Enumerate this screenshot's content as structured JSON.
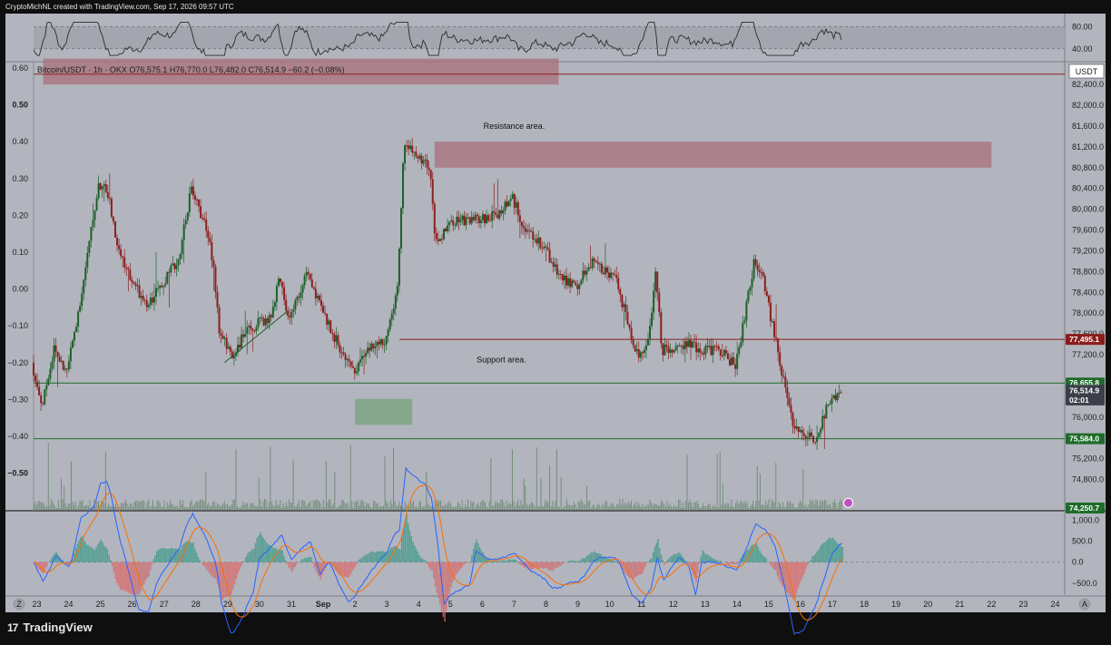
{
  "header": {
    "attribution": "CryptoMichNL created with TradingView.com, Sep 17, 2026 09:57 UTC"
  },
  "footer": {
    "brand": "TradingView",
    "logo_glyph": "17"
  },
  "symbol_line": "Bitcoin/USDT · 1h · OKX  O76,575.1  H76,770.0  L76,482.0  C76,514.9  −60.2 (−0.08%)",
  "currency_button": "USDT",
  "annotations": {
    "resistance": "Resistance area.",
    "support": "Support area."
  },
  "price_tags": [
    {
      "label": "77,495.1",
      "value": 77495.1,
      "color": "#8b1c1c"
    },
    {
      "label": "76,655.8",
      "value": 76655.8,
      "color": "#1e6b2a"
    },
    {
      "label": "76,514.9",
      "value": 76514.9,
      "color": "#3a3f4a"
    },
    {
      "label": "02:01",
      "value": 76330,
      "color": "#3a3f4a"
    },
    {
      "label": "75,584.0",
      "value": 75584.0,
      "color": "#1e6b2a"
    },
    {
      "label": "74,250.7",
      "value": 74250.7,
      "color": "#1e6b2a"
    }
  ],
  "axis_labels": {
    "right_price": [
      "82,400.0",
      "82,000.0",
      "81,600.0",
      "81,200.0",
      "80,800.0",
      "80,400.0",
      "80,000.0",
      "79,600.0",
      "79,200.0",
      "78,800.0",
      "78,400.0",
      "78,000.0",
      "77,600.0",
      "77,200.0",
      "76,000.0",
      "75,200.0",
      "74,800.0"
    ],
    "left": [
      "0.60",
      "0.50",
      "0.40",
      "0.30",
      "0.20",
      "0.10",
      "0.00",
      "−0.10",
      "−0.20",
      "−0.30",
      "−0.40",
      "−0.50"
    ],
    "rsi_right": [
      "80.00",
      "40.00"
    ],
    "macd_right": [
      "1,000.0",
      "500.0",
      "0.0",
      "−500.0"
    ],
    "x_dates": [
      "23",
      "24",
      "25",
      "26",
      "27",
      "28",
      "29",
      "30",
      "31",
      "Sep",
      "2",
      "3",
      "4",
      "5",
      "6",
      "7",
      "8",
      "9",
      "10",
      "11",
      "12",
      "13",
      "14",
      "15",
      "16",
      "17",
      "18",
      "19",
      "20",
      "21",
      "22",
      "23",
      "24"
    ],
    "x_left_btn": "Z",
    "x_right_btn": "A"
  },
  "colors": {
    "up": "#1f5f2a",
    "down": "#8e1f1f",
    "panel": "#b2b5be",
    "resistance_zone": "#a8707a",
    "support_zone": "#7ea583"
  },
  "chart_data": {
    "type": "candlestick",
    "title": "",
    "interval": "1h",
    "x_range": [
      "Aug 23",
      "Sep 24"
    ],
    "y_range": [
      74250,
      82700
    ],
    "y_unit": "USDT",
    "ohlc_last": {
      "open": 76575.1,
      "high": 76770.0,
      "low": 76482.0,
      "close": 76514.9,
      "change": -60.2,
      "change_pct": -0.08
    },
    "price_path": [
      [
        "Aug 22.9",
        77050
      ],
      [
        "Aug 23.2",
        76200
      ],
      [
        "Aug 23.6",
        77300
      ],
      [
        "Aug 24.0",
        76850
      ],
      [
        "Aug 24.5",
        78500
      ],
      [
        "Aug 25.0",
        80500
      ],
      [
        "Aug 25.3",
        80300
      ],
      [
        "Aug 25.6",
        79200
      ],
      [
        "Aug 26.0",
        78700
      ],
      [
        "Aug 26.5",
        78100
      ],
      [
        "Aug 27.0",
        78600
      ],
      [
        "Aug 27.5",
        79000
      ],
      [
        "Aug 27.9",
        80400
      ],
      [
        "Aug 28.3",
        79800
      ],
      [
        "Aug 28.6",
        79000
      ],
      [
        "Aug 28.8",
        77600
      ],
      [
        "Aug 29.2",
        77200
      ],
      [
        "Aug 29.6",
        77600
      ],
      [
        "Aug 30.0",
        77800
      ],
      [
        "Aug 30.4",
        77900
      ],
      [
        "Aug 30.7",
        78700
      ],
      [
        "Aug 31.0",
        77800
      ],
      [
        "Aug 31.3",
        78400
      ],
      [
        "Aug 31.6",
        78800
      ],
      [
        "Aug 31.9",
        78200
      ],
      [
        "Sep 1.3",
        77700
      ],
      [
        "Sep 1.6",
        77300
      ],
      [
        "Sep 2.0",
        76900
      ],
      [
        "Sep 2.5",
        77300
      ],
      [
        "Sep 3.0",
        77500
      ],
      [
        "Sep 3.4",
        78500
      ],
      [
        "Sep 3.6",
        81300
      ],
      [
        "Sep 4.0",
        81000
      ],
      [
        "Sep 4.4",
        80800
      ],
      [
        "Sep 4.6",
        79300
      ],
      [
        "Sep 5.0",
        79700
      ],
      [
        "Sep 5.5",
        79800
      ],
      [
        "Sep 6.0",
        79800
      ],
      [
        "Sep 6.5",
        79900
      ],
      [
        "Sep 7.0",
        80200
      ],
      [
        "Sep 7.5",
        79500
      ],
      [
        "Sep 8.0",
        79300
      ],
      [
        "Sep 8.5",
        78700
      ],
      [
        "Sep 9.0",
        78500
      ],
      [
        "Sep 9.5",
        79000
      ],
      [
        "Sep 10.0",
        78800
      ],
      [
        "Sep 10.3",
        78600
      ],
      [
        "Sep 10.7",
        77600
      ],
      [
        "Sep 11.0",
        77100
      ],
      [
        "Sep 11.3",
        77600
      ],
      [
        "Sep 11.5",
        78800
      ],
      [
        "Sep 11.7",
        77300
      ],
      [
        "Sep 12.0",
        77300
      ],
      [
        "Sep 12.5",
        77400
      ],
      [
        "Sep 13.0",
        77300
      ],
      [
        "Sep 13.5",
        77300
      ],
      [
        "Sep 14.0",
        77000
      ],
      [
        "Sep 14.3",
        77900
      ],
      [
        "Sep 14.6",
        79000
      ],
      [
        "Sep 14.9",
        78600
      ],
      [
        "Sep 15.2",
        77700
      ],
      [
        "Sep 15.5",
        76800
      ],
      [
        "Sep 15.8",
        75900
      ],
      [
        "Sep 16.0",
        75700
      ],
      [
        "Sep 16.5",
        75600
      ],
      [
        "Sep 16.9",
        76200
      ],
      [
        "Sep 17.3",
        76500
      ]
    ],
    "horizontal_levels": [
      {
        "price": 82600,
        "color": "#8e1f1f"
      },
      {
        "price": 77495.1,
        "color": "#8e1f1f"
      },
      {
        "price": 76655.8,
        "color": "#1e6b2a"
      },
      {
        "price": 75584.0,
        "color": "#1e6b2a"
      }
    ],
    "zones": [
      {
        "name": "Resistance area.",
        "from_date": "Sep 4.5",
        "to_date": "Sep 22",
        "low": 80800,
        "high": 81300
      },
      {
        "from_date": "Aug 23.2",
        "to_date": "Sep 8.4",
        "low": 82400,
        "high": 82900
      },
      {
        "name": "Support area.",
        "from_date": "Sep 2.0",
        "to_date": "Sep 3.8",
        "low": 75850,
        "high": 76350
      }
    ],
    "rsi": {
      "range": [
        20,
        100
      ],
      "levels": [
        80,
        40
      ]
    },
    "macd": {
      "range": [
        -700,
        1100
      ],
      "levels": [
        1000,
        500,
        0,
        -500
      ]
    }
  }
}
